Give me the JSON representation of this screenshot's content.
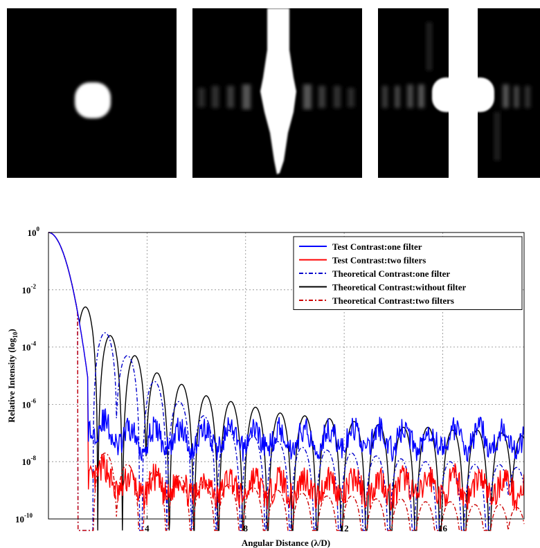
{
  "panels": [
    {
      "name": "psf-without-filter"
    },
    {
      "name": "psf-one-filter"
    },
    {
      "name": "psf-two-filters"
    }
  ],
  "chart_data": {
    "type": "line",
    "title": "",
    "xlabel": "Angular Distance (λ/D)",
    "ylabel_main": "Relative Intensity (log",
    "ylabel_sub": "10",
    "ylabel_end": ")",
    "xlim": [
      0,
      19.3
    ],
    "ylim_log10": [
      -10,
      0
    ],
    "yscale": "log",
    "xticks": [
      4,
      8,
      12,
      16
    ],
    "xtick_labels": [
      "4",
      "8",
      "12",
      "16"
    ],
    "yticks_log10": [
      0,
      -2,
      -4,
      -6,
      -8,
      -10
    ],
    "ytick_base": "10",
    "ytick_exponents": [
      "0",
      "-2",
      "-4",
      "-6",
      "-8",
      "-10"
    ],
    "grid": true,
    "legend_placement": "top-right",
    "series": [
      {
        "name": "Test Contrast:one filter",
        "color": "#0000ff",
        "style": "solid",
        "floor_log10": -7.2
      },
      {
        "name": "Test Contrast:two filters",
        "color": "#ff0000",
        "style": "solid",
        "floor_log10": -8.9
      },
      {
        "name": "Theoretical Contrast:one filter",
        "color": "#0000cc",
        "style": "dashdot",
        "lobe_peaks_log10": [
          [
            2.3,
            -3.5
          ],
          [
            3.2,
            -4.3
          ],
          [
            4.3,
            -5.2
          ],
          [
            5.3,
            -5.9
          ],
          [
            6.3,
            -6.4
          ],
          [
            7.3,
            -6.9
          ],
          [
            8.3,
            -7.1
          ],
          [
            9.3,
            -7.3
          ],
          [
            10.3,
            -7.5
          ],
          [
            11.3,
            -7.6
          ],
          [
            12.3,
            -7.7
          ],
          [
            13.3,
            -7.8
          ],
          [
            14.3,
            -7.9
          ],
          [
            15.3,
            -8.0
          ],
          [
            16.3,
            -8.0
          ],
          [
            17.3,
            -8.1
          ],
          [
            18.3,
            -8.1
          ],
          [
            19.0,
            -8.2
          ]
        ]
      },
      {
        "name": "Theoretical Contrast:without filter",
        "color": "#000000",
        "style": "solid",
        "lobe_peaks_log10": [
          [
            1.5,
            -2.6
          ],
          [
            2.5,
            -3.6
          ],
          [
            3.5,
            -4.3
          ],
          [
            4.4,
            -4.9
          ],
          [
            5.4,
            -5.3
          ],
          [
            6.4,
            -5.7
          ],
          [
            7.4,
            -5.9
          ],
          [
            8.4,
            -6.1
          ],
          [
            9.4,
            -6.3
          ],
          [
            10.4,
            -6.4
          ],
          [
            11.4,
            -6.5
          ],
          [
            12.4,
            -6.6
          ],
          [
            13.4,
            -6.7
          ],
          [
            14.4,
            -6.8
          ],
          [
            15.4,
            -6.8
          ],
          [
            16.4,
            -6.9
          ],
          [
            17.4,
            -6.9
          ],
          [
            18.4,
            -7.0
          ],
          [
            19.2,
            -7.1
          ]
        ]
      },
      {
        "name": "Theoretical Contrast:two filters",
        "color": "#cc0000",
        "style": "dashdot",
        "lobe_peaks_log10": [
          [
            2.3,
            -7.7
          ],
          [
            3.2,
            -8.1
          ],
          [
            4.3,
            -8.3
          ],
          [
            5.3,
            -8.5
          ],
          [
            6.3,
            -8.7
          ],
          [
            7.3,
            -8.8
          ],
          [
            8.3,
            -8.9
          ],
          [
            9.3,
            -9.0
          ],
          [
            10.3,
            -9.1
          ],
          [
            11.3,
            -9.2
          ],
          [
            12.3,
            -9.2
          ],
          [
            13.3,
            -9.3
          ],
          [
            14.3,
            -9.3
          ],
          [
            15.3,
            -9.4
          ],
          [
            16.3,
            -9.4
          ],
          [
            17.3,
            -9.5
          ],
          [
            18.3,
            -9.5
          ],
          [
            19.0,
            -9.6
          ]
        ]
      }
    ]
  }
}
